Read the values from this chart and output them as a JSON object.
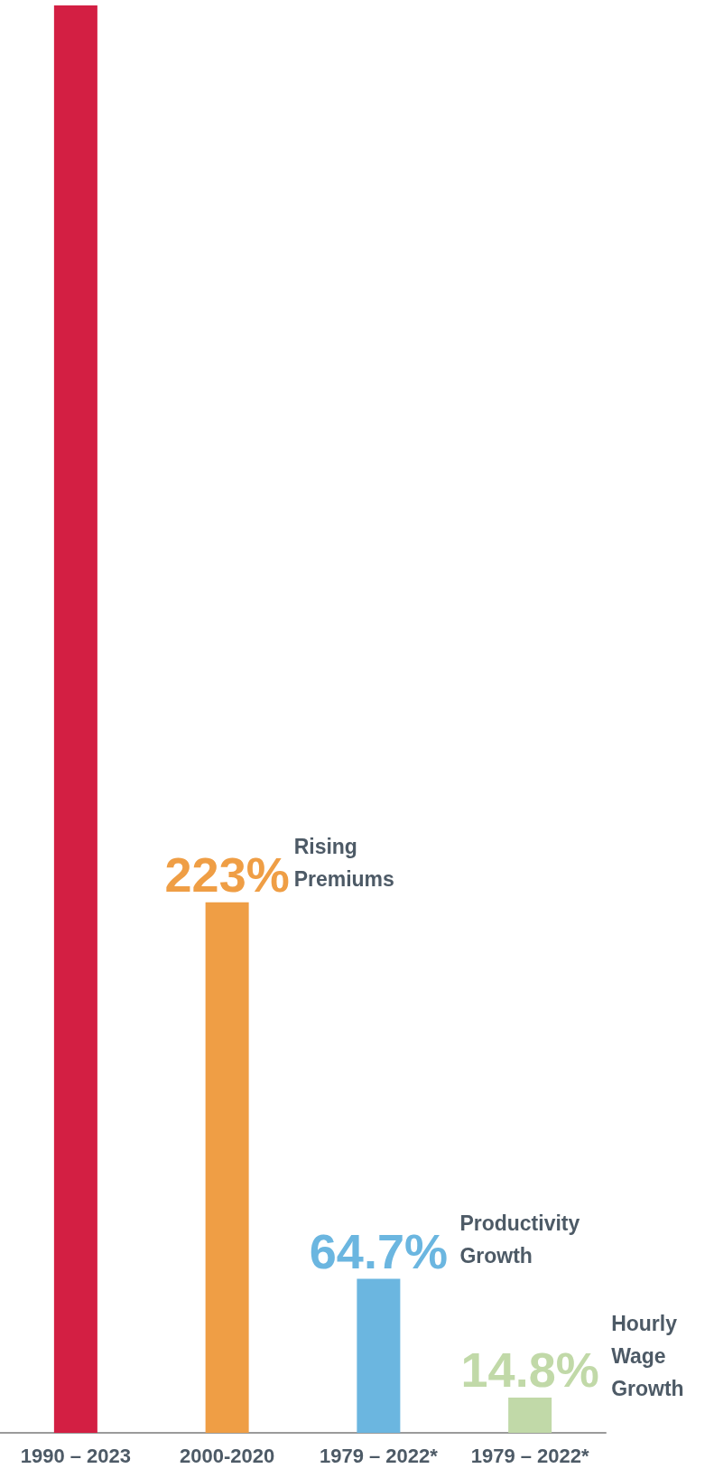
{
  "chart_data": {
    "type": "bar",
    "categories": [
      "1990 – 2023",
      "2000-2020",
      "1979 – 2022*",
      "1979 – 2022*"
    ],
    "values": [
      600,
      223,
      64.7,
      14.8
    ],
    "colors": [
      "#d31f43",
      "#ef9e45",
      "#6bb6e0",
      "#c1d9a8"
    ],
    "value_labels": [
      null,
      "223%",
      "64.7%",
      "14.8%"
    ],
    "ylim": [
      0,
      600
    ],
    "annotations": [
      "Rising Premiums",
      "Productivity Growth",
      "Hourly Wage Growth"
    ],
    "tick_labels": "x"
  }
}
